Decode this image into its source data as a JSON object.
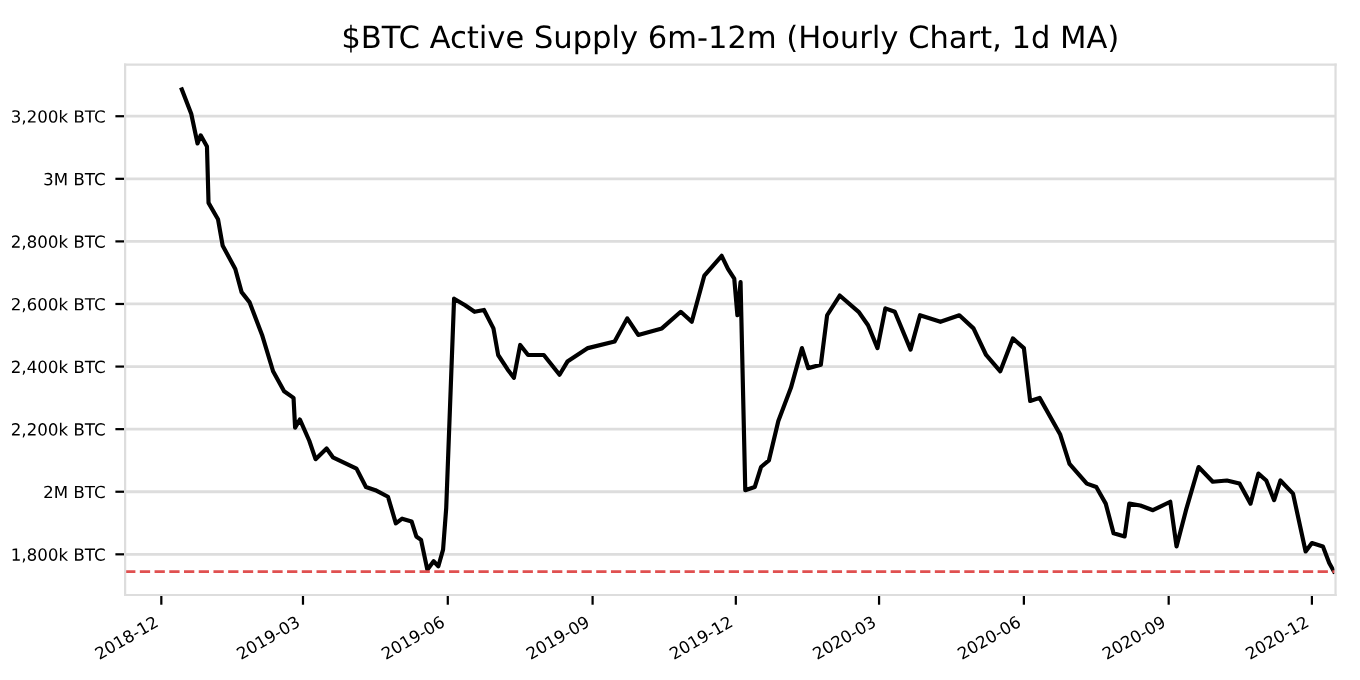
{
  "chart_data": {
    "type": "line",
    "title": "$BTC Active Supply 6m-12m (Hourly Chart, 1d MA)",
    "x": [
      "2018-12-14",
      "2018-12-20",
      "2018-12-24",
      "2018-12-26",
      "2018-12-30",
      "2018-12-31",
      "2019-01-06",
      "2019-01-09",
      "2019-01-17",
      "2019-01-21",
      "2019-01-26",
      "2019-02-03",
      "2019-02-10",
      "2019-02-17",
      "2019-02-23",
      "2019-02-24",
      "2019-02-27",
      "2019-03-05",
      "2019-03-09",
      "2019-03-16",
      "2019-03-20",
      "2019-04-04",
      "2019-04-10",
      "2019-04-16",
      "2019-04-24",
      "2019-04-29",
      "2019-05-03",
      "2019-05-09",
      "2019-05-12",
      "2019-05-15",
      "2019-05-19",
      "2019-05-23",
      "2019-05-26",
      "2019-05-29",
      "2019-05-31",
      "2019-06-05",
      "2019-06-12",
      "2019-06-18",
      "2019-06-24",
      "2019-06-30",
      "2019-07-03",
      "2019-07-09",
      "2019-07-13",
      "2019-07-17",
      "2019-07-22",
      "2019-08-01",
      "2019-08-11",
      "2019-08-16",
      "2019-08-29",
      "2019-09-15",
      "2019-09-23",
      "2019-09-30",
      "2019-10-15",
      "2019-10-27",
      "2019-11-03",
      "2019-11-11",
      "2019-11-22",
      "2019-11-26",
      "2019-11-30",
      "2019-12-02",
      "2019-12-04",
      "2019-12-07",
      "2019-12-13",
      "2019-12-17",
      "2019-12-22",
      "2019-12-28",
      "2020-01-05",
      "2020-01-12",
      "2020-01-16",
      "2020-01-24",
      "2020-01-28",
      "2020-02-05",
      "2020-02-17",
      "2020-02-23",
      "2020-02-29",
      "2020-03-05",
      "2020-03-11",
      "2020-03-21",
      "2020-03-27",
      "2020-04-09",
      "2020-04-21",
      "2020-04-30",
      "2020-05-08",
      "2020-05-17",
      "2020-05-25",
      "2020-06-01",
      "2020-06-05",
      "2020-06-11",
      "2020-06-24",
      "2020-06-30",
      "2020-07-11",
      "2020-07-17",
      "2020-07-23",
      "2020-07-28",
      "2020-08-04",
      "2020-08-07",
      "2020-08-14",
      "2020-08-22",
      "2020-09-02",
      "2020-09-06",
      "2020-09-12",
      "2020-09-20",
      "2020-09-29",
      "2020-10-08",
      "2020-10-16",
      "2020-10-23",
      "2020-10-28",
      "2020-11-02",
      "2020-11-07",
      "2020-11-11",
      "2020-11-19",
      "2020-11-27",
      "2020-12-01",
      "2020-12-08",
      "2020-12-12",
      "2020-12-15"
    ],
    "series": [
      {
        "color": "#000000",
        "values": [
          3286000,
          3208000,
          3113000,
          3139000,
          3103000,
          2923000,
          2871000,
          2786000,
          2712000,
          2638000,
          2606000,
          2501000,
          2385000,
          2321000,
          2300000,
          2205000,
          2231000,
          2163000,
          2104000,
          2138000,
          2110000,
          2074000,
          2015000,
          2005000,
          1984000,
          1899000,
          1914000,
          1905000,
          1857000,
          1846000,
          1751000,
          1778000,
          1762000,
          1815000,
          1948000,
          2617000,
          2596000,
          2575000,
          2581000,
          2522000,
          2437000,
          2391000,
          2364000,
          2469000,
          2437000,
          2437000,
          2374000,
          2416000,
          2459000,
          2480000,
          2554000,
          2501000,
          2522000,
          2575000,
          2543000,
          2691000,
          2754000,
          2712000,
          2681000,
          2564000,
          2670000,
          2005000,
          2015000,
          2079000,
          2100000,
          2226000,
          2332000,
          2459000,
          2395000,
          2406000,
          2564000,
          2627000,
          2575000,
          2532000,
          2459000,
          2586000,
          2575000,
          2454000,
          2564000,
          2543000,
          2564000,
          2522000,
          2437000,
          2385000,
          2490000,
          2459000,
          2290000,
          2300000,
          2184000,
          2089000,
          2026000,
          2015000,
          1962000,
          1867000,
          1857000,
          1962000,
          1956000,
          1941000,
          1968000,
          1825000,
          1941000,
          2079000,
          2032000,
          2036000,
          2026000,
          1962000,
          2058000,
          2036000,
          1973000,
          2036000,
          1994000,
          1809000,
          1836000,
          1825000,
          1772000,
          1745000
        ]
      }
    ],
    "xlim": [
      "2018-11-08",
      "2020-12-16"
    ],
    "xticks": [
      {
        "value": "2018-12-01",
        "label": "2018-12"
      },
      {
        "value": "2019-03-01",
        "label": "2019-03"
      },
      {
        "value": "2019-06-01",
        "label": "2019-06"
      },
      {
        "value": "2019-09-01",
        "label": "2019-09"
      },
      {
        "value": "2019-12-01",
        "label": "2019-12"
      },
      {
        "value": "2020-03-01",
        "label": "2020-03"
      },
      {
        "value": "2020-06-01",
        "label": "2020-06"
      },
      {
        "value": "2020-09-01",
        "label": "2020-09"
      },
      {
        "value": "2020-12-01",
        "label": "2020-12"
      }
    ],
    "ylim": [
      1670000,
      3365000
    ],
    "yticks": [
      {
        "value": 1800000,
        "label": "1,800k BTC"
      },
      {
        "value": 2000000,
        "label": "2M BTC"
      },
      {
        "value": 2200000,
        "label": "2,200k BTC"
      },
      {
        "value": 2400000,
        "label": "2,400k BTC"
      },
      {
        "value": 2600000,
        "label": "2,600k BTC"
      },
      {
        "value": 2800000,
        "label": "2,800k BTC"
      },
      {
        "value": 3000000,
        "label": "3M BTC"
      },
      {
        "value": 3200000,
        "label": "3,200k BTC"
      }
    ],
    "ref_lines": [
      {
        "axis": "y",
        "value": 1745000,
        "color": "#e05050",
        "line_style": "dashed"
      }
    ],
    "grid": "y",
    "marker": "none",
    "line_style": "solid"
  }
}
